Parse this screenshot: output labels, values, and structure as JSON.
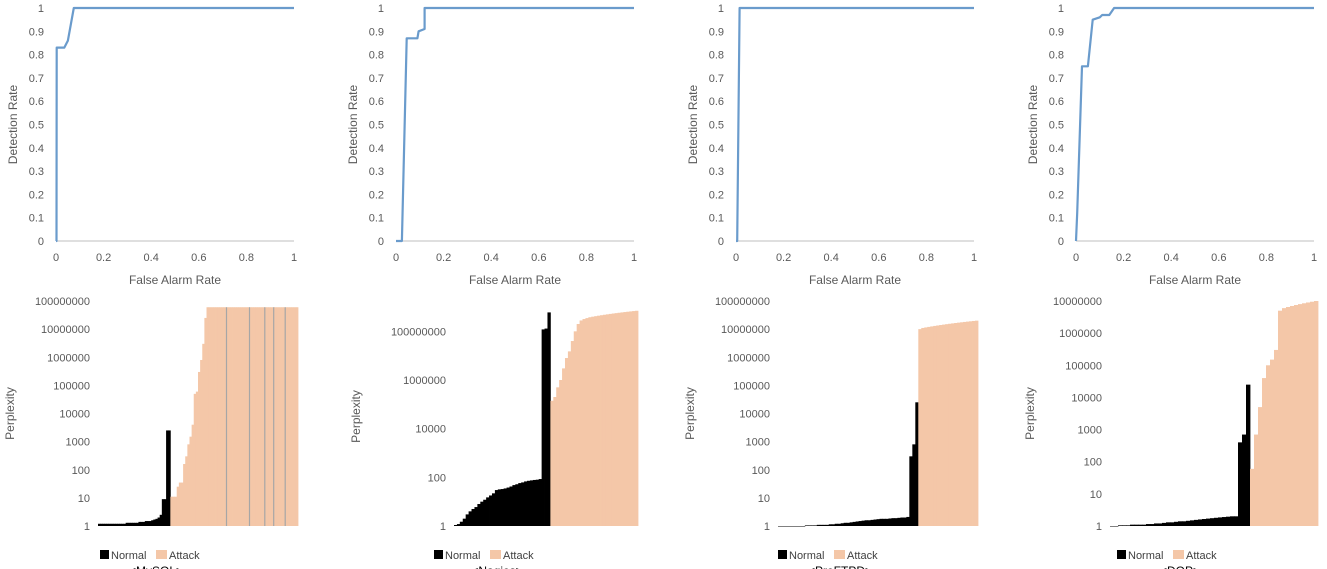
{
  "colors": {
    "roc_line": "#6a9bcc",
    "axis": "#bfbfbf",
    "normal": "#000000",
    "attack": "#f4c7a8",
    "divider": "#a6a6a6"
  },
  "chart_data": [
    {
      "type": "line",
      "xlabel": "False Alarm Rate",
      "ylabel": "Detection Rate",
      "xlim": [
        0,
        1
      ],
      "ylim": [
        0,
        1
      ],
      "x_ticks": [
        "0",
        "0.2",
        "0.4",
        "0.6",
        "0.8",
        "1"
      ],
      "y_ticks": [
        "0",
        "0.1",
        "0.2",
        "0.3",
        "0.4",
        "0.5",
        "0.6",
        "0.7",
        "0.8",
        "0.9",
        "1"
      ],
      "series": [
        {
          "x": [
            0,
            0.002,
            0.003,
            0.035,
            0.05,
            0.075,
            1
          ],
          "y": [
            0,
            0,
            0.83,
            0.83,
            0.86,
            1,
            1
          ]
        }
      ]
    },
    {
      "type": "line",
      "xlabel": "False Alarm Rate",
      "ylabel": "Detection Rate",
      "xlim": [
        0,
        1
      ],
      "ylim": [
        0,
        1
      ],
      "x_ticks": [
        "0",
        "0.2",
        "0.4",
        "0.6",
        "0.8",
        "1"
      ],
      "y_ticks": [
        "0",
        "0.1",
        "0.2",
        "0.3",
        "0.4",
        "0.5",
        "0.6",
        "0.7",
        "0.8",
        "0.9",
        "1"
      ],
      "series": [
        {
          "x": [
            0,
            0.025,
            0.045,
            0.06,
            0.09,
            0.095,
            0.12,
            0.12,
            1
          ],
          "y": [
            0,
            0,
            0.87,
            0.87,
            0.87,
            0.9,
            0.91,
            1,
            1
          ]
        }
      ]
    },
    {
      "type": "line",
      "xlabel": "False Alarm Rate",
      "ylabel": "Detection Rate",
      "xlim": [
        0,
        1
      ],
      "ylim": [
        0,
        1
      ],
      "x_ticks": [
        "0",
        "0.2",
        "0.4",
        "0.6",
        "0.8",
        "1"
      ],
      "y_ticks": [
        "0",
        "0.1",
        "0.2",
        "0.3",
        "0.4",
        "0.5",
        "0.6",
        "0.7",
        "0.8",
        "0.9",
        "1"
      ],
      "series": [
        {
          "x": [
            0,
            0.005,
            0.015,
            1
          ],
          "y": [
            0,
            0,
            1,
            1
          ]
        }
      ]
    },
    {
      "type": "line",
      "xlabel": "False Alarm Rate",
      "ylabel": "Detection Rate",
      "xlim": [
        0,
        1
      ],
      "ylim": [
        0,
        1
      ],
      "x_ticks": [
        "0",
        "0.2",
        "0.4",
        "0.6",
        "0.8",
        "1"
      ],
      "y_ticks": [
        "0",
        "0.1",
        "0.2",
        "0.3",
        "0.4",
        "0.5",
        "0.6",
        "0.7",
        "0.8",
        "0.9",
        "1"
      ],
      "series": [
        {
          "x": [
            0,
            0.005,
            0.025,
            0.05,
            0.07,
            0.1,
            0.11,
            0.14,
            0.16,
            1
          ],
          "y": [
            0,
            0.12,
            0.75,
            0.75,
            0.95,
            0.96,
            0.97,
            0.97,
            1,
            1
          ]
        }
      ]
    },
    {
      "type": "bar",
      "caption": "<MySQL>",
      "ylabel": "Perplexity",
      "yscale": "log",
      "ylim": [
        1,
        100000000
      ],
      "y_ticks": [
        "1",
        "10",
        "100",
        "1000",
        "10000",
        "100000",
        "1000000",
        "10000000",
        "100000000"
      ],
      "legend": [
        "Normal",
        "Attack"
      ],
      "series": [
        {
          "name": "Normal",
          "values": [
            1.2,
            1.2,
            1.2,
            1.2,
            1.2,
            1.2,
            1.2,
            1.2,
            1.2,
            1.2,
            1.2,
            1.2,
            1.2,
            1.3,
            1.3,
            1.3,
            1.3,
            1.3,
            1.3,
            1.4,
            1.4,
            1.4,
            1.5,
            1.5,
            1.5,
            1.6,
            1.7,
            1.8,
            2,
            2.5,
            9,
            9,
            2500,
            2500
          ]
        },
        {
          "name": "Attack",
          "values": [
            11,
            11,
            11,
            25,
            35,
            35,
            160,
            300,
            800,
            1500,
            4000,
            50000,
            60000,
            300000,
            800000,
            3000000,
            25000000,
            60000000,
            60000000,
            60000000,
            60000000,
            60000000,
            60000000,
            60000000,
            60000000,
            60000000,
            60000000,
            60000000,
            60000000,
            60000000,
            60000000,
            60000000,
            60000000,
            60000000,
            60000000,
            60000000,
            60000000,
            60000000,
            60000000,
            60000000,
            60000000,
            60000000,
            60000000,
            60000000,
            60000000,
            60000000,
            60000000,
            60000000,
            60000000,
            60000000,
            60000000,
            60000000,
            60000000,
            60000000,
            60000000,
            60000000,
            60000000,
            60000000,
            60000000,
            60000000
          ]
        }
      ]
    },
    {
      "type": "bar",
      "caption": "<Nagios>",
      "ylabel": "Perplexity",
      "yscale": "log",
      "ylim": [
        1,
        1000000000
      ],
      "y_ticks": [
        "1",
        "100",
        "10000",
        "1000000",
        "100000000"
      ],
      "legend": [
        "Normal",
        "Attack"
      ],
      "series": [
        {
          "name": "Normal",
          "values": [
            1.1,
            1.2,
            1.5,
            2,
            3,
            4,
            5,
            6,
            8,
            10,
            12,
            15,
            18,
            22,
            30,
            32,
            33,
            35,
            38,
            42,
            48,
            52,
            58,
            62,
            68,
            72,
            75,
            78,
            80,
            85,
            120000000,
            130000000,
            600000000
          ]
        },
        {
          "name": "Attack",
          "values": [
            140000,
            200000,
            500000,
            1000000,
            3000000,
            8000000,
            15000000,
            40000000,
            100000000,
            200000000,
            280000000,
            320000000,
            350000000,
            380000000,
            400000000,
            420000000,
            440000000,
            460000000,
            480000000,
            500000000,
            520000000,
            540000000,
            560000000,
            580000000,
            600000000,
            620000000,
            640000000,
            660000000,
            680000000,
            700000000
          ]
        }
      ]
    },
    {
      "type": "bar",
      "caption": "<ProFTPD>",
      "ylabel": "Perplexity",
      "yscale": "log",
      "ylim": [
        1,
        100000000
      ],
      "y_ticks": [
        "1",
        "10",
        "100",
        "1000",
        "10000",
        "100000",
        "1000000",
        "10000000",
        "100000000"
      ],
      "legend": [
        "Normal",
        "Attack"
      ],
      "series": [
        {
          "name": "Normal",
          "values": [
            1,
            1,
            1,
            1,
            1,
            1,
            1,
            1,
            1,
            1.05,
            1.05,
            1.05,
            1.05,
            1.1,
            1.1,
            1.1,
            1.1,
            1.15,
            1.15,
            1.2,
            1.2,
            1.25,
            1.3,
            1.3,
            1.35,
            1.4,
            1.45,
            1.5,
            1.55,
            1.6,
            1.6,
            1.65,
            1.7,
            1.75,
            1.8,
            1.8,
            1.8,
            1.85,
            1.9,
            1.9,
            1.95,
            2,
            2,
            2.1,
            300,
            800,
            25000
          ]
        },
        {
          "name": "Attack",
          "values": [
            10000000,
            11000000,
            11500000,
            12000000,
            12500000,
            13000000,
            13500000,
            14000000,
            14500000,
            15000000,
            15500000,
            16000000,
            16500000,
            17000000,
            17500000,
            18000000,
            18500000,
            19000000,
            19500000,
            20000000
          ]
        }
      ]
    },
    {
      "type": "bar",
      "caption": "<DOP>",
      "ylabel": "Perplexity",
      "yscale": "log",
      "ylim": [
        1,
        10000000
      ],
      "y_ticks": [
        "1",
        "10",
        "100",
        "1000",
        "10000",
        "100000",
        "1000000",
        "10000000"
      ],
      "legend": [
        "Normal",
        "Attack"
      ],
      "series": [
        {
          "name": "Normal",
          "values": [
            1,
            1,
            1.05,
            1.05,
            1.05,
            1.1,
            1.1,
            1.1,
            1.1,
            1.15,
            1.15,
            1.2,
            1.2,
            1.25,
            1.3,
            1.3,
            1.35,
            1.4,
            1.4,
            1.45,
            1.5,
            1.55,
            1.6,
            1.65,
            1.7,
            1.75,
            1.8,
            1.85,
            1.9,
            1.95,
            2,
            2,
            400,
            700,
            25000
          ]
        },
        {
          "name": "Attack",
          "values": [
            60,
            700,
            5000,
            40000,
            100000,
            150000,
            300000,
            5000000,
            6000000,
            6500000,
            7000000,
            7500000,
            8000000,
            8500000,
            9000000,
            9500000,
            10000000
          ]
        }
      ]
    }
  ]
}
